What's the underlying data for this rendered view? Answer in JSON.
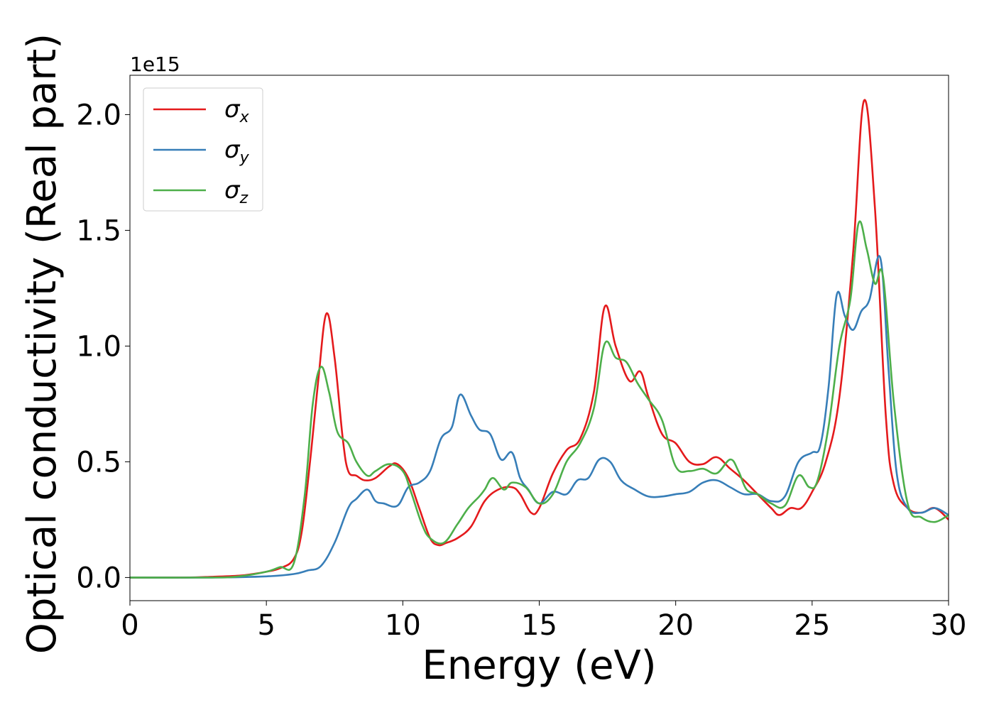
{
  "chart_data": {
    "type": "line",
    "title": "",
    "xlabel": "Energy (eV)",
    "ylabel": "Optical conductivity (Real part)",
    "y_offset_label": "1e15",
    "xlim": [
      0,
      30
    ],
    "ylim": [
      -0.1,
      2.17
    ],
    "xticks": [
      0,
      5,
      10,
      15,
      20,
      25,
      30
    ],
    "xtick_labels": [
      "0",
      "5",
      "10",
      "15",
      "20",
      "25",
      "30"
    ],
    "yticks": [
      0.0,
      0.5,
      1.0,
      1.5,
      2.0
    ],
    "ytick_labels": [
      "0.0",
      "0.5",
      "1.0",
      "1.5",
      "2.0"
    ],
    "grid": false,
    "legend_position": "top-left",
    "series": [
      {
        "name": "σx",
        "symbol": "σ",
        "subscript": "x",
        "color": "#e41a1c",
        "x": [
          0,
          2,
          3,
          4,
          4.5,
          5,
          5.5,
          6,
          6.3,
          6.6,
          6.9,
          7.2,
          7.5,
          7.8,
          8.0,
          8.3,
          8.6,
          9.0,
          9.5,
          9.8,
          10.2,
          10.6,
          11.0,
          11.3,
          11.6,
          12.0,
          12.5,
          13.0,
          13.5,
          14.0,
          14.3,
          14.7,
          15.0,
          15.5,
          16.0,
          16.5,
          17.0,
          17.4,
          17.8,
          18.3,
          18.7,
          19.0,
          19.5,
          20.0,
          20.5,
          21.0,
          21.5,
          22.0,
          22.5,
          23.0,
          23.5,
          23.8,
          24.2,
          24.6,
          25.0,
          25.5,
          26.0,
          26.5,
          26.9,
          27.3,
          27.7,
          28.0,
          28.5,
          29.0,
          29.5,
          30.0
        ],
        "y": [
          0.0,
          0.0,
          0.003,
          0.008,
          0.015,
          0.025,
          0.04,
          0.08,
          0.2,
          0.5,
          0.85,
          1.14,
          0.95,
          0.6,
          0.46,
          0.44,
          0.42,
          0.43,
          0.48,
          0.49,
          0.43,
          0.3,
          0.17,
          0.14,
          0.15,
          0.17,
          0.22,
          0.33,
          0.38,
          0.39,
          0.36,
          0.28,
          0.3,
          0.45,
          0.55,
          0.6,
          0.8,
          1.17,
          1.0,
          0.85,
          0.89,
          0.78,
          0.62,
          0.58,
          0.5,
          0.49,
          0.52,
          0.47,
          0.42,
          0.36,
          0.3,
          0.27,
          0.3,
          0.3,
          0.37,
          0.5,
          0.78,
          1.4,
          2.06,
          1.6,
          0.7,
          0.4,
          0.3,
          0.28,
          0.3,
          0.25
        ]
      },
      {
        "name": "σy",
        "symbol": "σ",
        "subscript": "y",
        "color": "#377eb8",
        "x": [
          0,
          3,
          5,
          6,
          6.5,
          7.0,
          7.5,
          8.0,
          8.3,
          8.7,
          9.0,
          9.3,
          9.8,
          10.2,
          10.6,
          11.0,
          11.4,
          11.8,
          12.1,
          12.5,
          12.8,
          13.2,
          13.6,
          14.0,
          14.3,
          14.6,
          15.0,
          15.5,
          16.0,
          16.4,
          16.8,
          17.2,
          17.6,
          18.0,
          18.5,
          19.0,
          19.5,
          20.0,
          20.5,
          21.0,
          21.5,
          22.0,
          22.5,
          23.0,
          23.5,
          24.0,
          24.5,
          25.0,
          25.3,
          25.6,
          25.9,
          26.2,
          26.5,
          26.8,
          27.1,
          27.5,
          27.8,
          28.1,
          28.5,
          29.0,
          29.5,
          30.0
        ],
        "y": [
          0.0,
          0.0,
          0.005,
          0.015,
          0.03,
          0.05,
          0.15,
          0.3,
          0.34,
          0.38,
          0.33,
          0.32,
          0.31,
          0.39,
          0.41,
          0.46,
          0.6,
          0.65,
          0.79,
          0.7,
          0.64,
          0.62,
          0.51,
          0.54,
          0.43,
          0.38,
          0.32,
          0.37,
          0.36,
          0.42,
          0.43,
          0.51,
          0.5,
          0.42,
          0.38,
          0.35,
          0.35,
          0.36,
          0.37,
          0.41,
          0.42,
          0.39,
          0.36,
          0.36,
          0.33,
          0.35,
          0.5,
          0.54,
          0.57,
          0.82,
          1.22,
          1.13,
          1.07,
          1.15,
          1.2,
          1.38,
          0.9,
          0.45,
          0.3,
          0.28,
          0.3,
          0.27
        ]
      },
      {
        "name": "σz",
        "symbol": "σ",
        "subscript": "z",
        "color": "#4daf4a",
        "x": [
          0,
          3,
          4,
          5,
          5.5,
          6.0,
          6.4,
          6.7,
          7.0,
          7.3,
          7.6,
          8.0,
          8.3,
          8.7,
          9.0,
          9.5,
          10.0,
          10.3,
          10.7,
          11.0,
          11.5,
          12.0,
          12.4,
          12.8,
          13.0,
          13.3,
          13.7,
          14.0,
          14.5,
          15.0,
          15.5,
          16.0,
          16.5,
          17.0,
          17.4,
          17.8,
          18.2,
          18.6,
          19.0,
          19.5,
          20.0,
          20.5,
          21.0,
          21.5,
          22.0,
          22.3,
          22.6,
          23.0,
          23.5,
          24.0,
          24.5,
          24.9,
          25.2,
          25.6,
          26.0,
          26.4,
          26.7,
          27.0,
          27.3,
          27.6,
          28.0,
          28.5,
          29.0,
          29.5,
          30.0
        ],
        "y": [
          0.0,
          0.0,
          0.005,
          0.025,
          0.045,
          0.06,
          0.35,
          0.75,
          0.91,
          0.8,
          0.63,
          0.58,
          0.5,
          0.44,
          0.46,
          0.49,
          0.46,
          0.37,
          0.23,
          0.17,
          0.15,
          0.23,
          0.3,
          0.35,
          0.38,
          0.43,
          0.38,
          0.41,
          0.39,
          0.32,
          0.36,
          0.5,
          0.58,
          0.73,
          1.01,
          0.95,
          0.93,
          0.84,
          0.77,
          0.68,
          0.48,
          0.46,
          0.47,
          0.45,
          0.51,
          0.46,
          0.38,
          0.36,
          0.32,
          0.31,
          0.44,
          0.39,
          0.42,
          0.65,
          1.0,
          1.2,
          1.53,
          1.42,
          1.27,
          1.3,
          0.75,
          0.32,
          0.26,
          0.24,
          0.27
        ]
      }
    ]
  }
}
